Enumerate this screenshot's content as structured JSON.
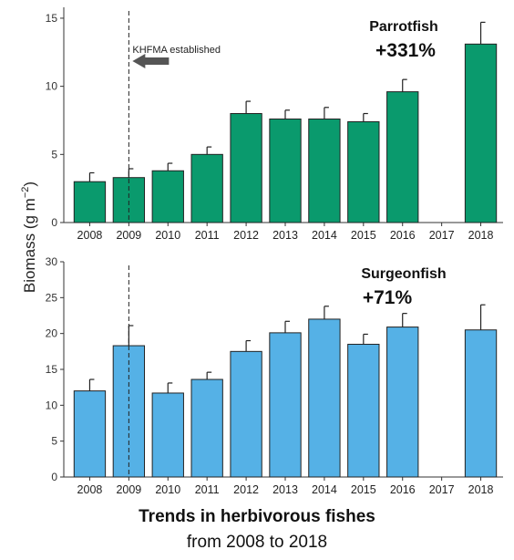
{
  "y_axis_label": "Biomass (g m",
  "y_axis_unit_exponent": "−2",
  "caption": {
    "title": "Trends in herbivorous fishes",
    "subtitle": "from 2008 to 2018"
  },
  "colors": {
    "parrotfish": "#0a9a6d",
    "surgeonfish": "#55b1e6",
    "arrow": "#555555"
  },
  "chart_data": [
    {
      "type": "bar",
      "title": "Parrotfish",
      "annotation": "+331%",
      "marker_label": "KHFMA established",
      "marker_year": "2009",
      "categories": [
        "2008",
        "2009",
        "2010",
        "2011",
        "2012",
        "2013",
        "2014",
        "2015",
        "2016",
        "2017",
        "2018"
      ],
      "values": [
        3.0,
        3.3,
        3.8,
        5.0,
        8.0,
        7.6,
        7.6,
        7.4,
        9.6,
        null,
        13.1
      ],
      "errors": [
        0.65,
        0.65,
        0.55,
        0.55,
        0.9,
        0.65,
        0.85,
        0.6,
        0.9,
        null,
        1.6
      ],
      "ylim": [
        0,
        15.8
      ],
      "yticks": [
        0,
        5,
        10,
        15
      ],
      "grid": false
    },
    {
      "type": "bar",
      "title": "Surgeonfish",
      "annotation": "+71%",
      "marker_year": "2009",
      "categories": [
        "2008",
        "2009",
        "2010",
        "2011",
        "2012",
        "2013",
        "2014",
        "2015",
        "2016",
        "2017",
        "2018"
      ],
      "values": [
        12.0,
        18.3,
        11.7,
        13.6,
        17.5,
        20.1,
        22.0,
        18.5,
        20.9,
        null,
        20.5
      ],
      "errors": [
        1.6,
        2.8,
        1.4,
        1.0,
        1.5,
        1.6,
        1.8,
        1.4,
        1.9,
        null,
        3.5
      ],
      "ylim": [
        0,
        30
      ],
      "yticks": [
        0,
        5,
        10,
        15,
        20,
        25,
        30
      ],
      "grid": false
    }
  ]
}
